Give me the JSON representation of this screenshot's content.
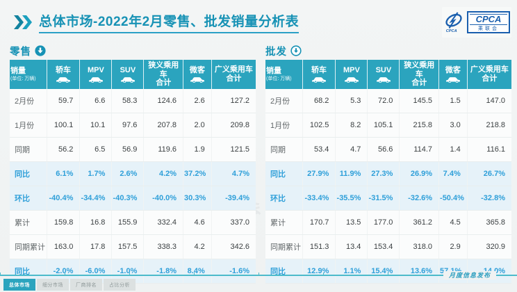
{
  "title": "总体市场-2022年2月零售、批发销量分析表",
  "logo": {
    "name": "CPCA",
    "subtitle": "乘联会"
  },
  "watermark": "CPCA乘联会",
  "colors": {
    "accent_teal": "#1792B5",
    "header_teal": "#2BA4BE",
    "percent_blue": "#2E9FD9",
    "percent_bg": "#E6F2F9",
    "logo_blue": "#1A5FAE"
  },
  "tables": [
    {
      "id": "retail",
      "section": "零售",
      "section_icon": "down-arrow-filled-circle-icon",
      "header": {
        "sales_label": "销量",
        "unit_label": "(单位: 万辆)",
        "columns": [
          {
            "id": "sedan",
            "label": "轿车",
            "icon": "sedan-car-icon"
          },
          {
            "id": "mpv",
            "label": "MPV",
            "icon": "mpv-car-icon"
          },
          {
            "id": "suv",
            "label": "SUV",
            "icon": "suv-car-icon"
          },
          {
            "id": "narrow-pv-total",
            "label": "狭义乘用车",
            "sub": "合计"
          },
          {
            "id": "microvan",
            "label": "微客",
            "icon": "microvan-car-icon"
          },
          {
            "id": "broad-pv-total",
            "label": "广义乘用车",
            "sub": "合计"
          }
        ]
      },
      "rows": [
        {
          "label": "2月份",
          "type": "value",
          "values": [
            "59.7",
            "6.6",
            "58.3",
            "124.6",
            "2.6",
            "127.2"
          ]
        },
        {
          "label": "1月份",
          "type": "value",
          "values": [
            "100.1",
            "10.1",
            "97.6",
            "207.8",
            "2.0",
            "209.8"
          ]
        },
        {
          "label": "同期",
          "type": "value",
          "values": [
            "56.2",
            "6.5",
            "56.9",
            "119.6",
            "1.9",
            "121.5"
          ]
        },
        {
          "label": "同比",
          "type": "percent",
          "values": [
            "6.1%",
            "1.7%",
            "2.6%",
            "4.2%",
            "37.2%",
            "4.7%"
          ]
        },
        {
          "label": "环比",
          "type": "percent",
          "values": [
            "-40.4%",
            "-34.4%",
            "-40.3%",
            "-40.0%",
            "30.3%",
            "-39.4%"
          ]
        },
        {
          "label": "累计",
          "type": "value",
          "values": [
            "159.8",
            "16.8",
            "155.9",
            "332.4",
            "4.6",
            "337.0"
          ]
        },
        {
          "label": "同期累计",
          "type": "value",
          "values": [
            "163.0",
            "17.8",
            "157.5",
            "338.3",
            "4.2",
            "342.6"
          ]
        },
        {
          "label": "同比",
          "type": "percent",
          "values": [
            "-2.0%",
            "-6.0%",
            "-1.0%",
            "-1.8%",
            "8.4%",
            "-1.6%"
          ]
        }
      ]
    },
    {
      "id": "wholesale",
      "section": "批发",
      "section_icon": "down-arrow-circle-outline-icon",
      "header": {
        "sales_label": "销量",
        "unit_label": "(单位: 万辆)",
        "columns": [
          {
            "id": "sedan",
            "label": "轿车",
            "icon": "sedan-car-icon"
          },
          {
            "id": "mpv",
            "label": "MPV",
            "icon": "mpv-car-icon"
          },
          {
            "id": "suv",
            "label": "SUV",
            "icon": "suv-car-icon"
          },
          {
            "id": "narrow-pv-total",
            "label": "狭义乘用车",
            "sub": "合计"
          },
          {
            "id": "microvan",
            "label": "微客",
            "icon": "microvan-car-icon"
          },
          {
            "id": "broad-pv-total",
            "label": "广义乘用车",
            "sub": "合计"
          }
        ]
      },
      "rows": [
        {
          "label": "2月份",
          "type": "value",
          "values": [
            "68.2",
            "5.3",
            "72.0",
            "145.5",
            "1.5",
            "147.0"
          ]
        },
        {
          "label": "1月份",
          "type": "value",
          "values": [
            "102.5",
            "8.2",
            "105.1",
            "215.8",
            "3.0",
            "218.8"
          ]
        },
        {
          "label": "同期",
          "type": "value",
          "values": [
            "53.4",
            "4.7",
            "56.6",
            "114.7",
            "1.4",
            "116.1"
          ]
        },
        {
          "label": "同比",
          "type": "percent",
          "values": [
            "27.9%",
            "11.9%",
            "27.3%",
            "26.9%",
            "7.4%",
            "26.7%"
          ]
        },
        {
          "label": "环比",
          "type": "percent",
          "values": [
            "-33.4%",
            "-35.5%",
            "-31.5%",
            "-32.6%",
            "-50.4%",
            "-32.8%"
          ]
        },
        {
          "label": "累计",
          "type": "value",
          "values": [
            "170.7",
            "13.5",
            "177.0",
            "361.2",
            "4.5",
            "365.8"
          ]
        },
        {
          "label": "同期累计",
          "type": "value",
          "values": [
            "151.3",
            "13.4",
            "153.4",
            "318.0",
            "2.9",
            "320.9"
          ]
        },
        {
          "label": "同比",
          "type": "percent",
          "values": [
            "12.9%",
            "1.1%",
            "15.4%",
            "13.6%",
            "57.1%",
            "14.0%"
          ]
        }
      ]
    }
  ],
  "footer": {
    "tabs": [
      {
        "id": "overall-market",
        "label": "总体市场",
        "active": true
      },
      {
        "id": "segment-market",
        "label": "细分市场",
        "active": false
      },
      {
        "id": "oem-ranking",
        "label": "厂商排名",
        "active": false
      },
      {
        "id": "share-analysis",
        "label": "占比分析",
        "active": false
      }
    ],
    "release_note": "月度信息发布"
  }
}
